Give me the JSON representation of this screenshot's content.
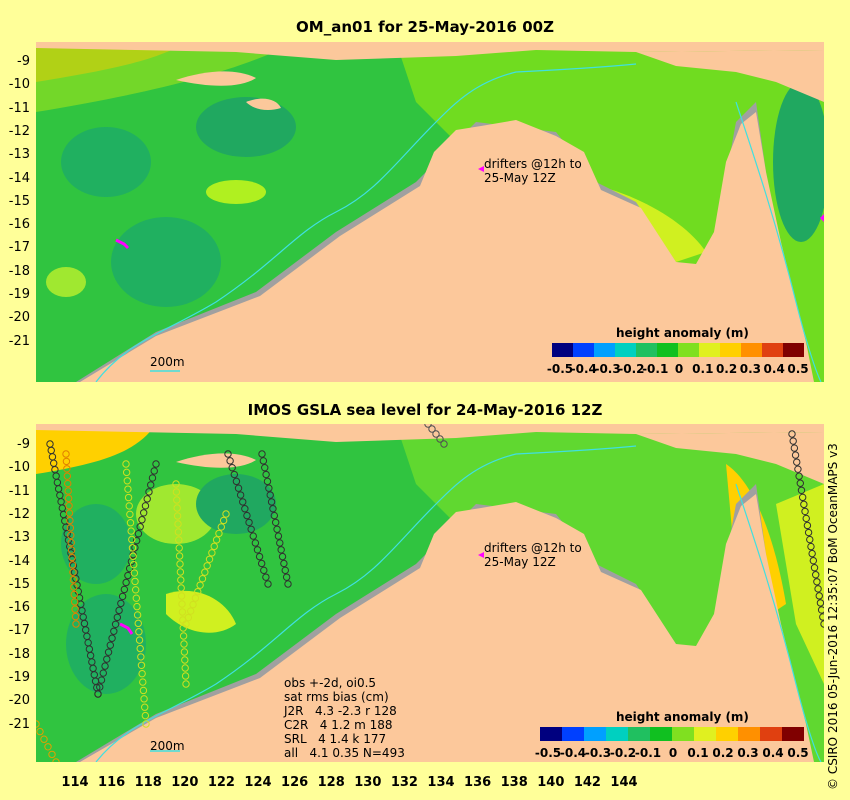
{
  "panels": [
    {
      "title": "OM_an01 for 25-May-2016 00Z",
      "drifter_label": [
        "drifters @12h to",
        "25-May 12Z"
      ],
      "isobath_label": "200m",
      "y_ticks": [
        "-9",
        "-10",
        "-11",
        "-12",
        "-13",
        "-14",
        "-15",
        "-16",
        "-17",
        "-18",
        "-19",
        "-20",
        "-21"
      ]
    },
    {
      "title": "IMOS GSLA sea level  for 24-May-2016 12Z",
      "drifter_label": [
        "drifters @12h to",
        "25-May 12Z"
      ],
      "isobath_label": "200m",
      "y_ticks": [
        "-9",
        "-10",
        "-11",
        "-12",
        "-13",
        "-14",
        "-15",
        "-16",
        "-17",
        "-18",
        "-19",
        "-20",
        "-21"
      ],
      "stats": [
        "obs +-2d, oi0.5",
        "sat rms bias (cm)",
        "J2R   4.3 -2.3 r 128",
        "C2R   4 1.2 m 188",
        "SRL   4 1.4 k 177",
        "all   4.1 0.35 N=493"
      ]
    }
  ],
  "x_ticks": [
    "114",
    "116",
    "118",
    "120",
    "122",
    "124",
    "126",
    "128",
    "130",
    "132",
    "134",
    "136",
    "138",
    "140",
    "142",
    "144"
  ],
  "colorbar": {
    "title": "height anomaly (m)",
    "labels": [
      "-0.5",
      "-0.4",
      "-0.3",
      "-0.2",
      "-0.1",
      "0",
      "0.1",
      "0.2",
      "0.3",
      "0.4",
      "0.5"
    ],
    "colors": [
      "#00007f",
      "#0040ff",
      "#00a0ff",
      "#00d0c0",
      "#20c060",
      "#10c020",
      "#80e020",
      "#e0f020",
      "#ffd000",
      "#ff9000",
      "#e04010",
      "#800000"
    ]
  },
  "credit": "© CSIRO 2016  05-Jun-2016 12:35:07 BoM OceanMAPS v3",
  "colors": {
    "background": "#ffff99",
    "land": "#fcc89b",
    "shelf": "#a0a0a0",
    "sea": "#40d040",
    "isobath": "#40e0e0",
    "drifter": "#ff00ff"
  }
}
